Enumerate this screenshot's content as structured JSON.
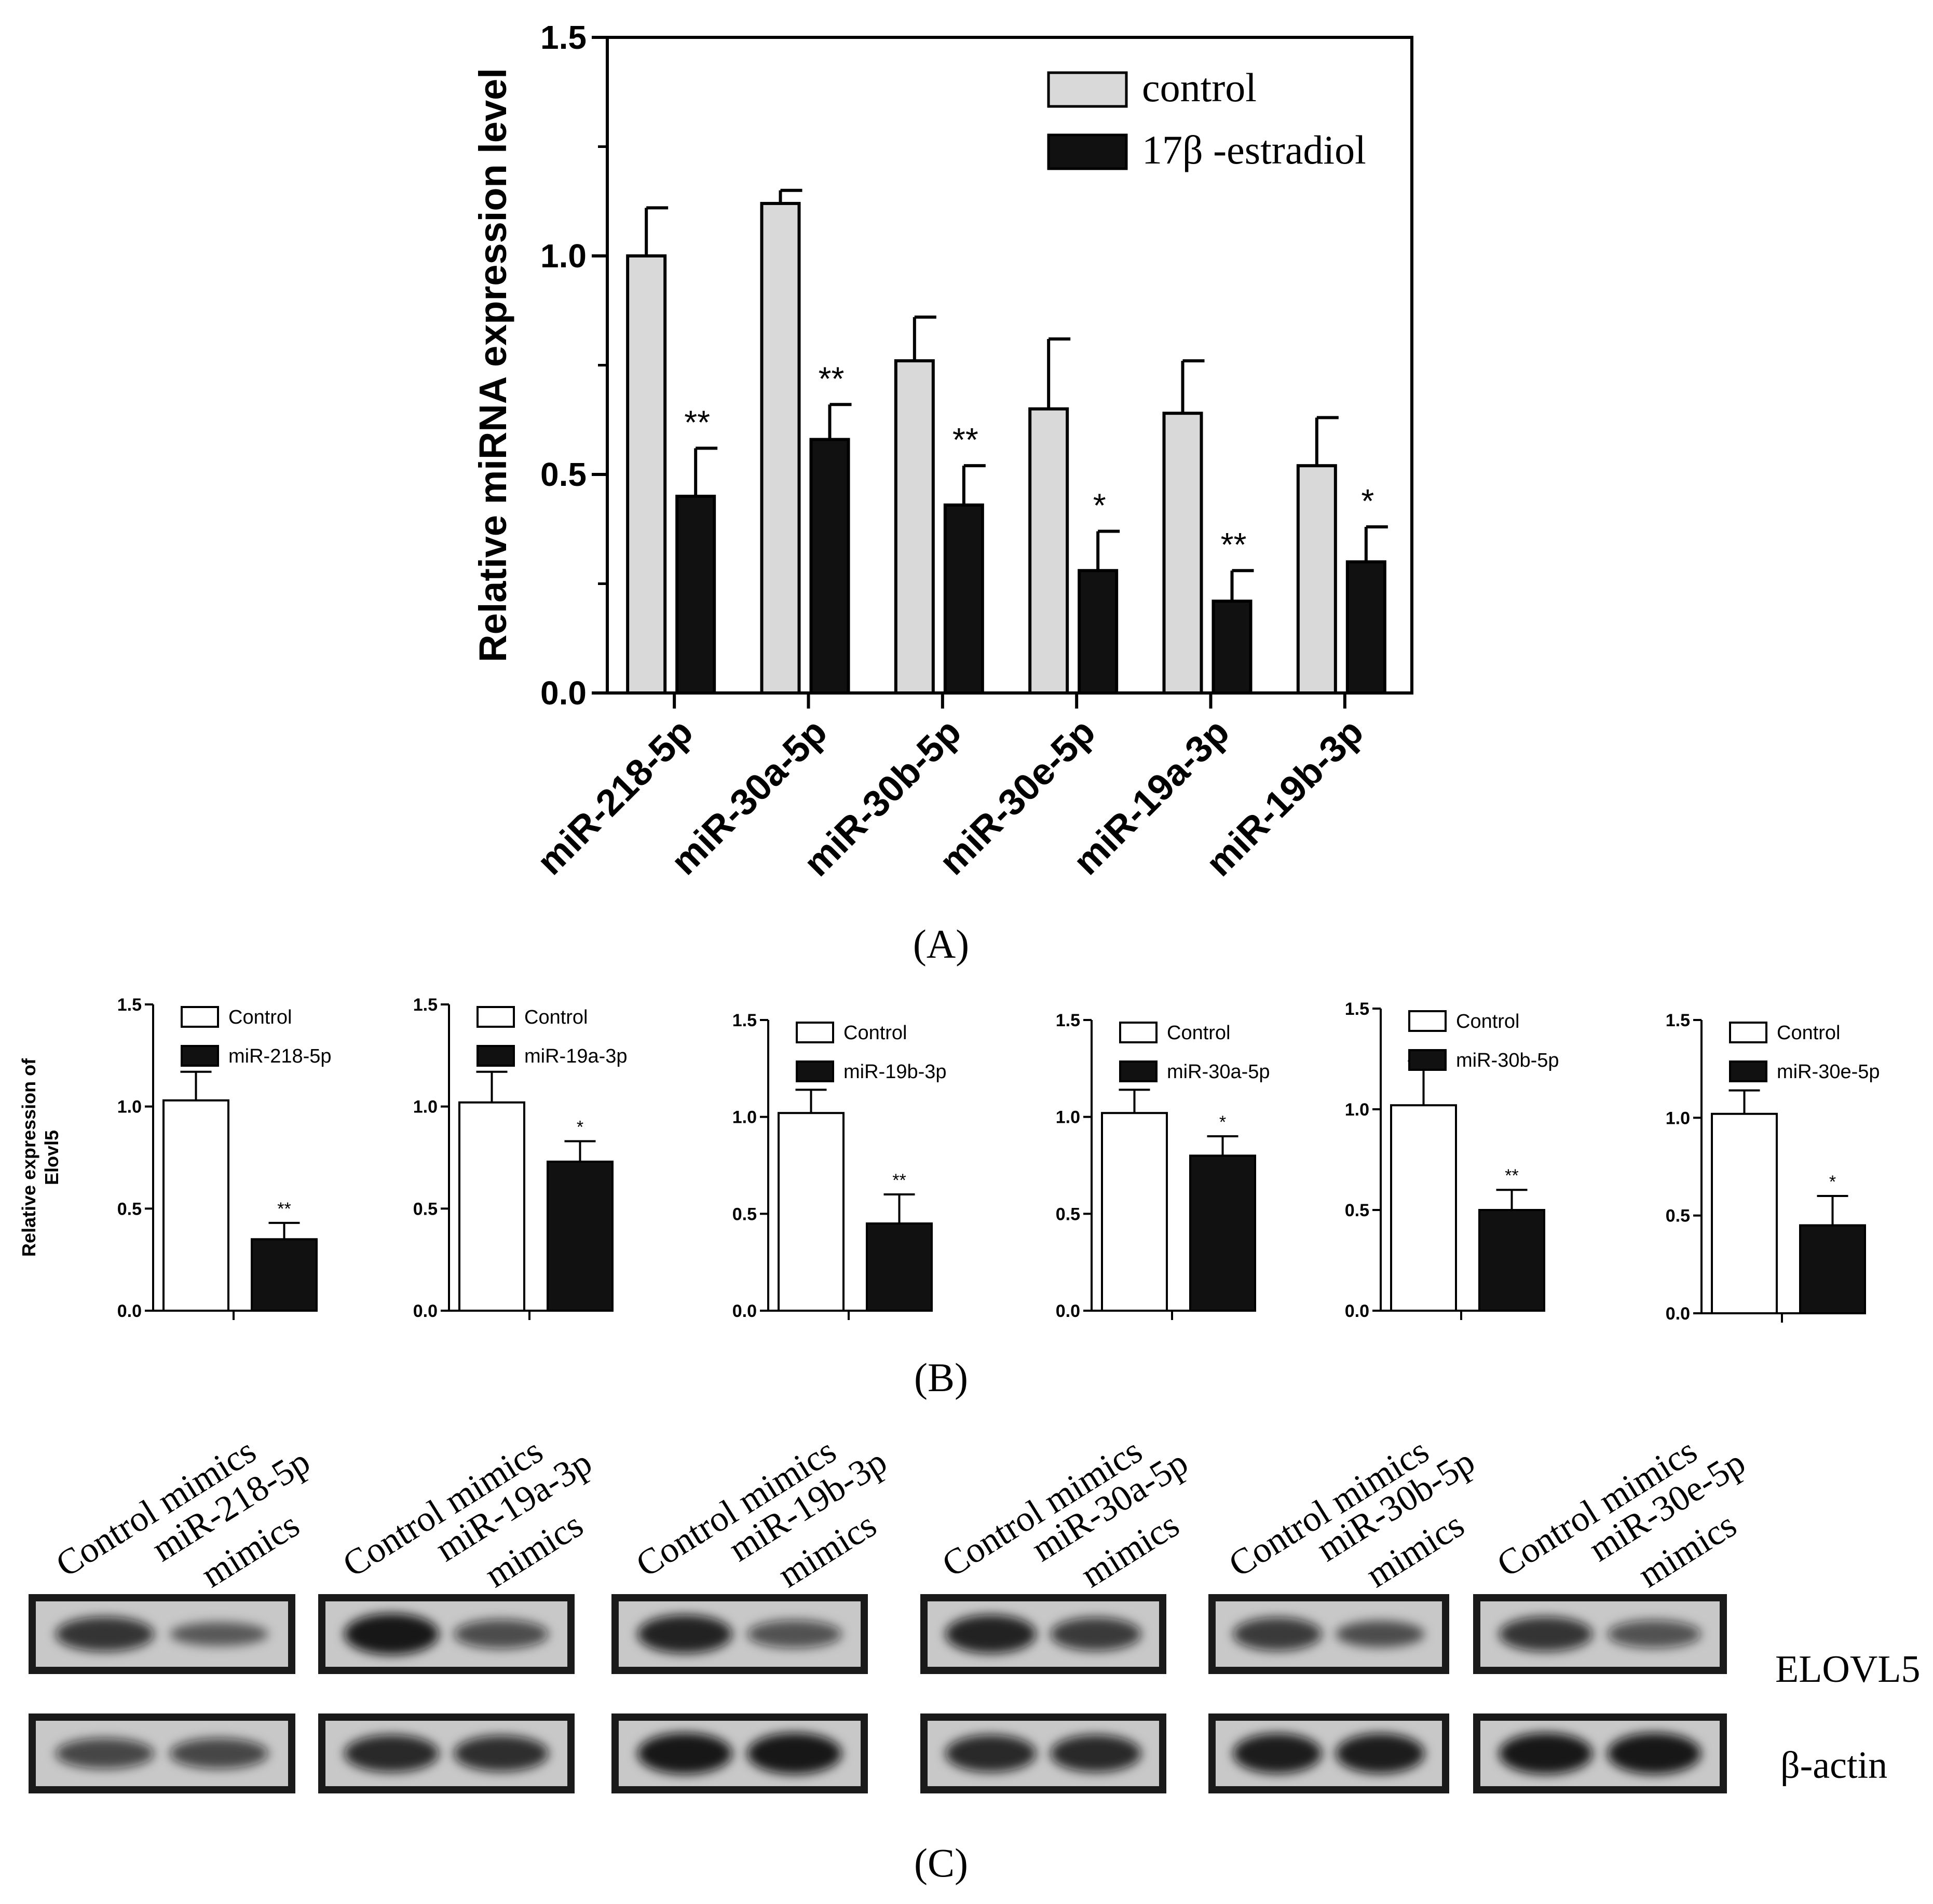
{
  "panel_labels": [
    "(A)",
    "(B)",
    "(C)"
  ],
  "chart_data": [
    {
      "id": "A",
      "type": "bar",
      "categories": [
        "miR-218-5p",
        "miR-30a-5p",
        "miR-30b-5p",
        "miR-30e-5p",
        "miR-19a-3p",
        "miR-19b-3p"
      ],
      "series": [
        {
          "name": "control",
          "color": "#d9d9d9",
          "values": [
            1.0,
            1.12,
            0.76,
            0.65,
            0.64,
            0.52
          ],
          "errors": [
            0.11,
            0.03,
            0.1,
            0.16,
            0.12,
            0.11
          ]
        },
        {
          "name": "17β -estradiol",
          "color": "#111111",
          "values": [
            0.45,
            0.58,
            0.43,
            0.28,
            0.21,
            0.3
          ],
          "errors": [
            0.11,
            0.08,
            0.09,
            0.09,
            0.07,
            0.08
          ]
        }
      ],
      "significance": [
        "**",
        "**",
        "**",
        "*",
        "**",
        "*"
      ],
      "ylabel": "Relative miRNA expression level",
      "ylim": [
        0,
        1.5
      ],
      "yticks": [
        "0.0",
        "0.5",
        "1.0",
        "1.5"
      ],
      "legend": "top-right",
      "grid": false
    },
    {
      "id": "B1",
      "type": "bar",
      "ylabel": "Relative expression of Elovl5",
      "ylim": [
        0,
        1.5
      ],
      "yticks": [
        "0.0",
        "0.5",
        "1.0",
        "1.5"
      ],
      "legend": "top-right",
      "series": [
        {
          "name": "Control",
          "color": "#ffffff",
          "value": 1.03,
          "error": 0.14
        },
        {
          "name": "miR-218-5p",
          "color": "#111111",
          "value": 0.35,
          "error": 0.08
        }
      ],
      "significance": "**"
    },
    {
      "id": "B2",
      "type": "bar",
      "ylabel": "",
      "ylim": [
        0,
        1.5
      ],
      "yticks": [
        "0.0",
        "0.5",
        "1.0",
        "1.5"
      ],
      "legend": "top-right",
      "series": [
        {
          "name": "Control",
          "color": "#ffffff",
          "value": 1.02,
          "error": 0.15
        },
        {
          "name": "miR-19a-3p",
          "color": "#111111",
          "value": 0.73,
          "error": 0.1
        }
      ],
      "significance": "*"
    },
    {
      "id": "B3",
      "type": "bar",
      "ylabel": "",
      "ylim": [
        0,
        1.5
      ],
      "yticks": [
        "0.0",
        "0.5",
        "1.0",
        "1.5"
      ],
      "legend": "top-right",
      "series": [
        {
          "name": "Control",
          "color": "#ffffff",
          "value": 1.02,
          "error": 0.12
        },
        {
          "name": "miR-19b-3p",
          "color": "#111111",
          "value": 0.45,
          "error": 0.15
        }
      ],
      "significance": "**"
    },
    {
      "id": "B4",
      "type": "bar",
      "ylabel": "",
      "ylim": [
        0,
        1.5
      ],
      "yticks": [
        "0.0",
        "0.5",
        "1.0",
        "1.5"
      ],
      "legend": "top-right",
      "series": [
        {
          "name": "Control",
          "color": "#ffffff",
          "value": 1.02,
          "error": 0.12
        },
        {
          "name": "miR-30a-5p",
          "color": "#111111",
          "value": 0.8,
          "error": 0.1
        }
      ],
      "significance": "*"
    },
    {
      "id": "B5",
      "type": "bar",
      "ylabel": "",
      "ylim": [
        0,
        1.5
      ],
      "yticks": [
        "0.0",
        "0.5",
        "1.0",
        "1.5"
      ],
      "legend": "top-right",
      "series": [
        {
          "name": "Control",
          "color": "#ffffff",
          "value": 1.02,
          "error": 0.22
        },
        {
          "name": "miR-30b-5p",
          "color": "#111111",
          "value": 0.5,
          "error": 0.1
        }
      ],
      "significance": "**"
    },
    {
      "id": "B6",
      "type": "bar",
      "ylabel": "",
      "ylim": [
        0,
        1.5
      ],
      "yticks": [
        "0.0",
        "0.5",
        "1.0",
        "1.5"
      ],
      "legend": "top-right",
      "series": [
        {
          "name": "Control",
          "color": "#ffffff",
          "value": 1.02,
          "error": 0.12
        },
        {
          "name": "miR-30e-5p",
          "color": "#111111",
          "value": 0.45,
          "error": 0.15
        }
      ],
      "significance": "*"
    }
  ],
  "western_blot": {
    "row_labels": [
      "ELOVL5",
      "β-actin"
    ],
    "blots": [
      {
        "lane1": "Control mimics",
        "lane2": [
          "miR-218-5p",
          "mimics"
        ],
        "elovl5": [
          0.75,
          0.35
        ],
        "actin": [
          0.6,
          0.6
        ]
      },
      {
        "lane1": "Control mimics",
        "lane2": [
          "miR-19a-3p",
          "mimics"
        ],
        "elovl5": [
          1.0,
          0.55
        ],
        "actin": [
          0.85,
          0.8
        ]
      },
      {
        "lane1": "Control mimics",
        "lane2": [
          "miR-19b-3p",
          "mimics"
        ],
        "elovl5": [
          0.9,
          0.5
        ],
        "actin": [
          1.0,
          1.0
        ]
      },
      {
        "lane1": "Control mimics",
        "lane2": [
          "miR-30a-5p",
          "mimics"
        ],
        "elovl5": [
          0.9,
          0.7
        ],
        "actin": [
          0.85,
          0.85
        ]
      },
      {
        "lane1": "Control mimics",
        "lane2": [
          "miR-30b-5p",
          "mimics"
        ],
        "elovl5": [
          0.7,
          0.45
        ],
        "actin": [
          0.95,
          0.95
        ]
      },
      {
        "lane1": "Control mimics",
        "lane2": [
          "miR-30e-5p",
          "mimics"
        ],
        "elovl5": [
          0.75,
          0.5
        ],
        "actin": [
          1.0,
          1.0
        ]
      }
    ]
  }
}
